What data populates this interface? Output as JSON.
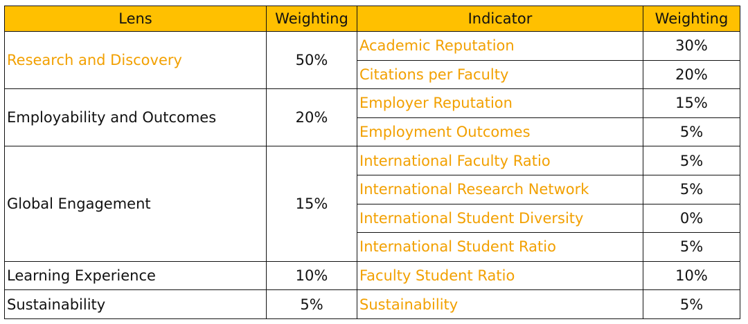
{
  "colors": {
    "header_bg": "#FFC000",
    "accent_text": "#F2A000",
    "border": "#111111"
  },
  "headers": {
    "lens": "Lens",
    "lens_weighting": "Weighting",
    "indicator": "Indicator",
    "indicator_weighting": "Weighting"
  },
  "rows": [
    {
      "lens": "Research and Discovery",
      "weighting": "50%",
      "indicators": [
        {
          "name": "Academic Reputation",
          "weighting": "30%"
        },
        {
          "name": "Citations per Faculty",
          "weighting": "20%"
        }
      ]
    },
    {
      "lens": "Employability and Outcomes",
      "weighting": "20%",
      "indicators": [
        {
          "name": "Employer Reputation",
          "weighting": "15%"
        },
        {
          "name": "Employment Outcomes",
          "weighting": "5%"
        }
      ]
    },
    {
      "lens": "Global Engagement",
      "weighting": "15%",
      "indicators": [
        {
          "name": "International Faculty Ratio",
          "weighting": "5%"
        },
        {
          "name": "International Research Network",
          "weighting": "5%"
        },
        {
          "name": "International Student Diversity",
          "weighting": "0%"
        },
        {
          "name": "International Student Ratio",
          "weighting": "5%"
        }
      ]
    },
    {
      "lens": "Learning Experience",
      "weighting": "10%",
      "indicators": [
        {
          "name": "Faculty Student Ratio",
          "weighting": "10%"
        }
      ]
    },
    {
      "lens": "Sustainability",
      "weighting": "5%",
      "indicators": [
        {
          "name": "Sustainability",
          "weighting": "5%"
        }
      ]
    }
  ]
}
